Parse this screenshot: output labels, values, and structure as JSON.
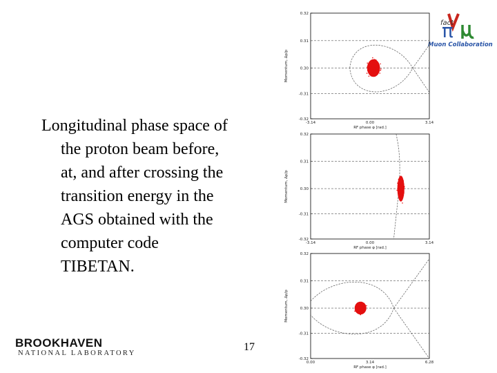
{
  "body_text": "Longitudinal phase space of the proton beam before, at, and after crossing the transition energy in the AGS obtained with the computer code TIBETAN.",
  "page_number": "17",
  "logo_bnl": {
    "line1": "BROOKHAVEN",
    "line2": "NATIONAL LABORATORY"
  },
  "logo_muon": {
    "small": "fact",
    "caption": "Muon Collaboration"
  },
  "colors": {
    "particles": "#e41010",
    "curve": "#555555",
    "axes": "#000000"
  },
  "chart_data": [
    {
      "type": "scatter",
      "ylabel": "Momentum, Δp/p",
      "xlabel": "RF phase φ [rad.]",
      "y_ticks": [
        "0.32",
        "0.31",
        "0.30",
        "-0.31",
        "-0.32"
      ],
      "x_ticks": [
        "-3.14",
        "0.00",
        "3.14"
      ],
      "bunch_center": {
        "x": 0.0,
        "y": 0.0
      }
    },
    {
      "type": "scatter",
      "ylabel": "Momentum, Δp/p",
      "xlabel": "RF phase φ [rad.]",
      "y_ticks": [
        "0.32",
        "0.31",
        "0.30",
        "-0.31",
        "-0.32"
      ],
      "x_ticks": [
        "-3.14",
        "0.00",
        "3.14"
      ],
      "bunch_center": {
        "x": 1.0,
        "y": 0.0
      }
    },
    {
      "type": "scatter",
      "ylabel": "Momentum, Δp/p",
      "xlabel": "RF phase φ [rad.]",
      "y_ticks": [
        "0.32",
        "0.31",
        "0.30",
        "-0.31",
        "-0.32"
      ],
      "x_ticks": [
        "0.00",
        "3.14",
        "6.28"
      ],
      "bunch_center": {
        "x": 3.14,
        "y": 0.0
      }
    }
  ]
}
